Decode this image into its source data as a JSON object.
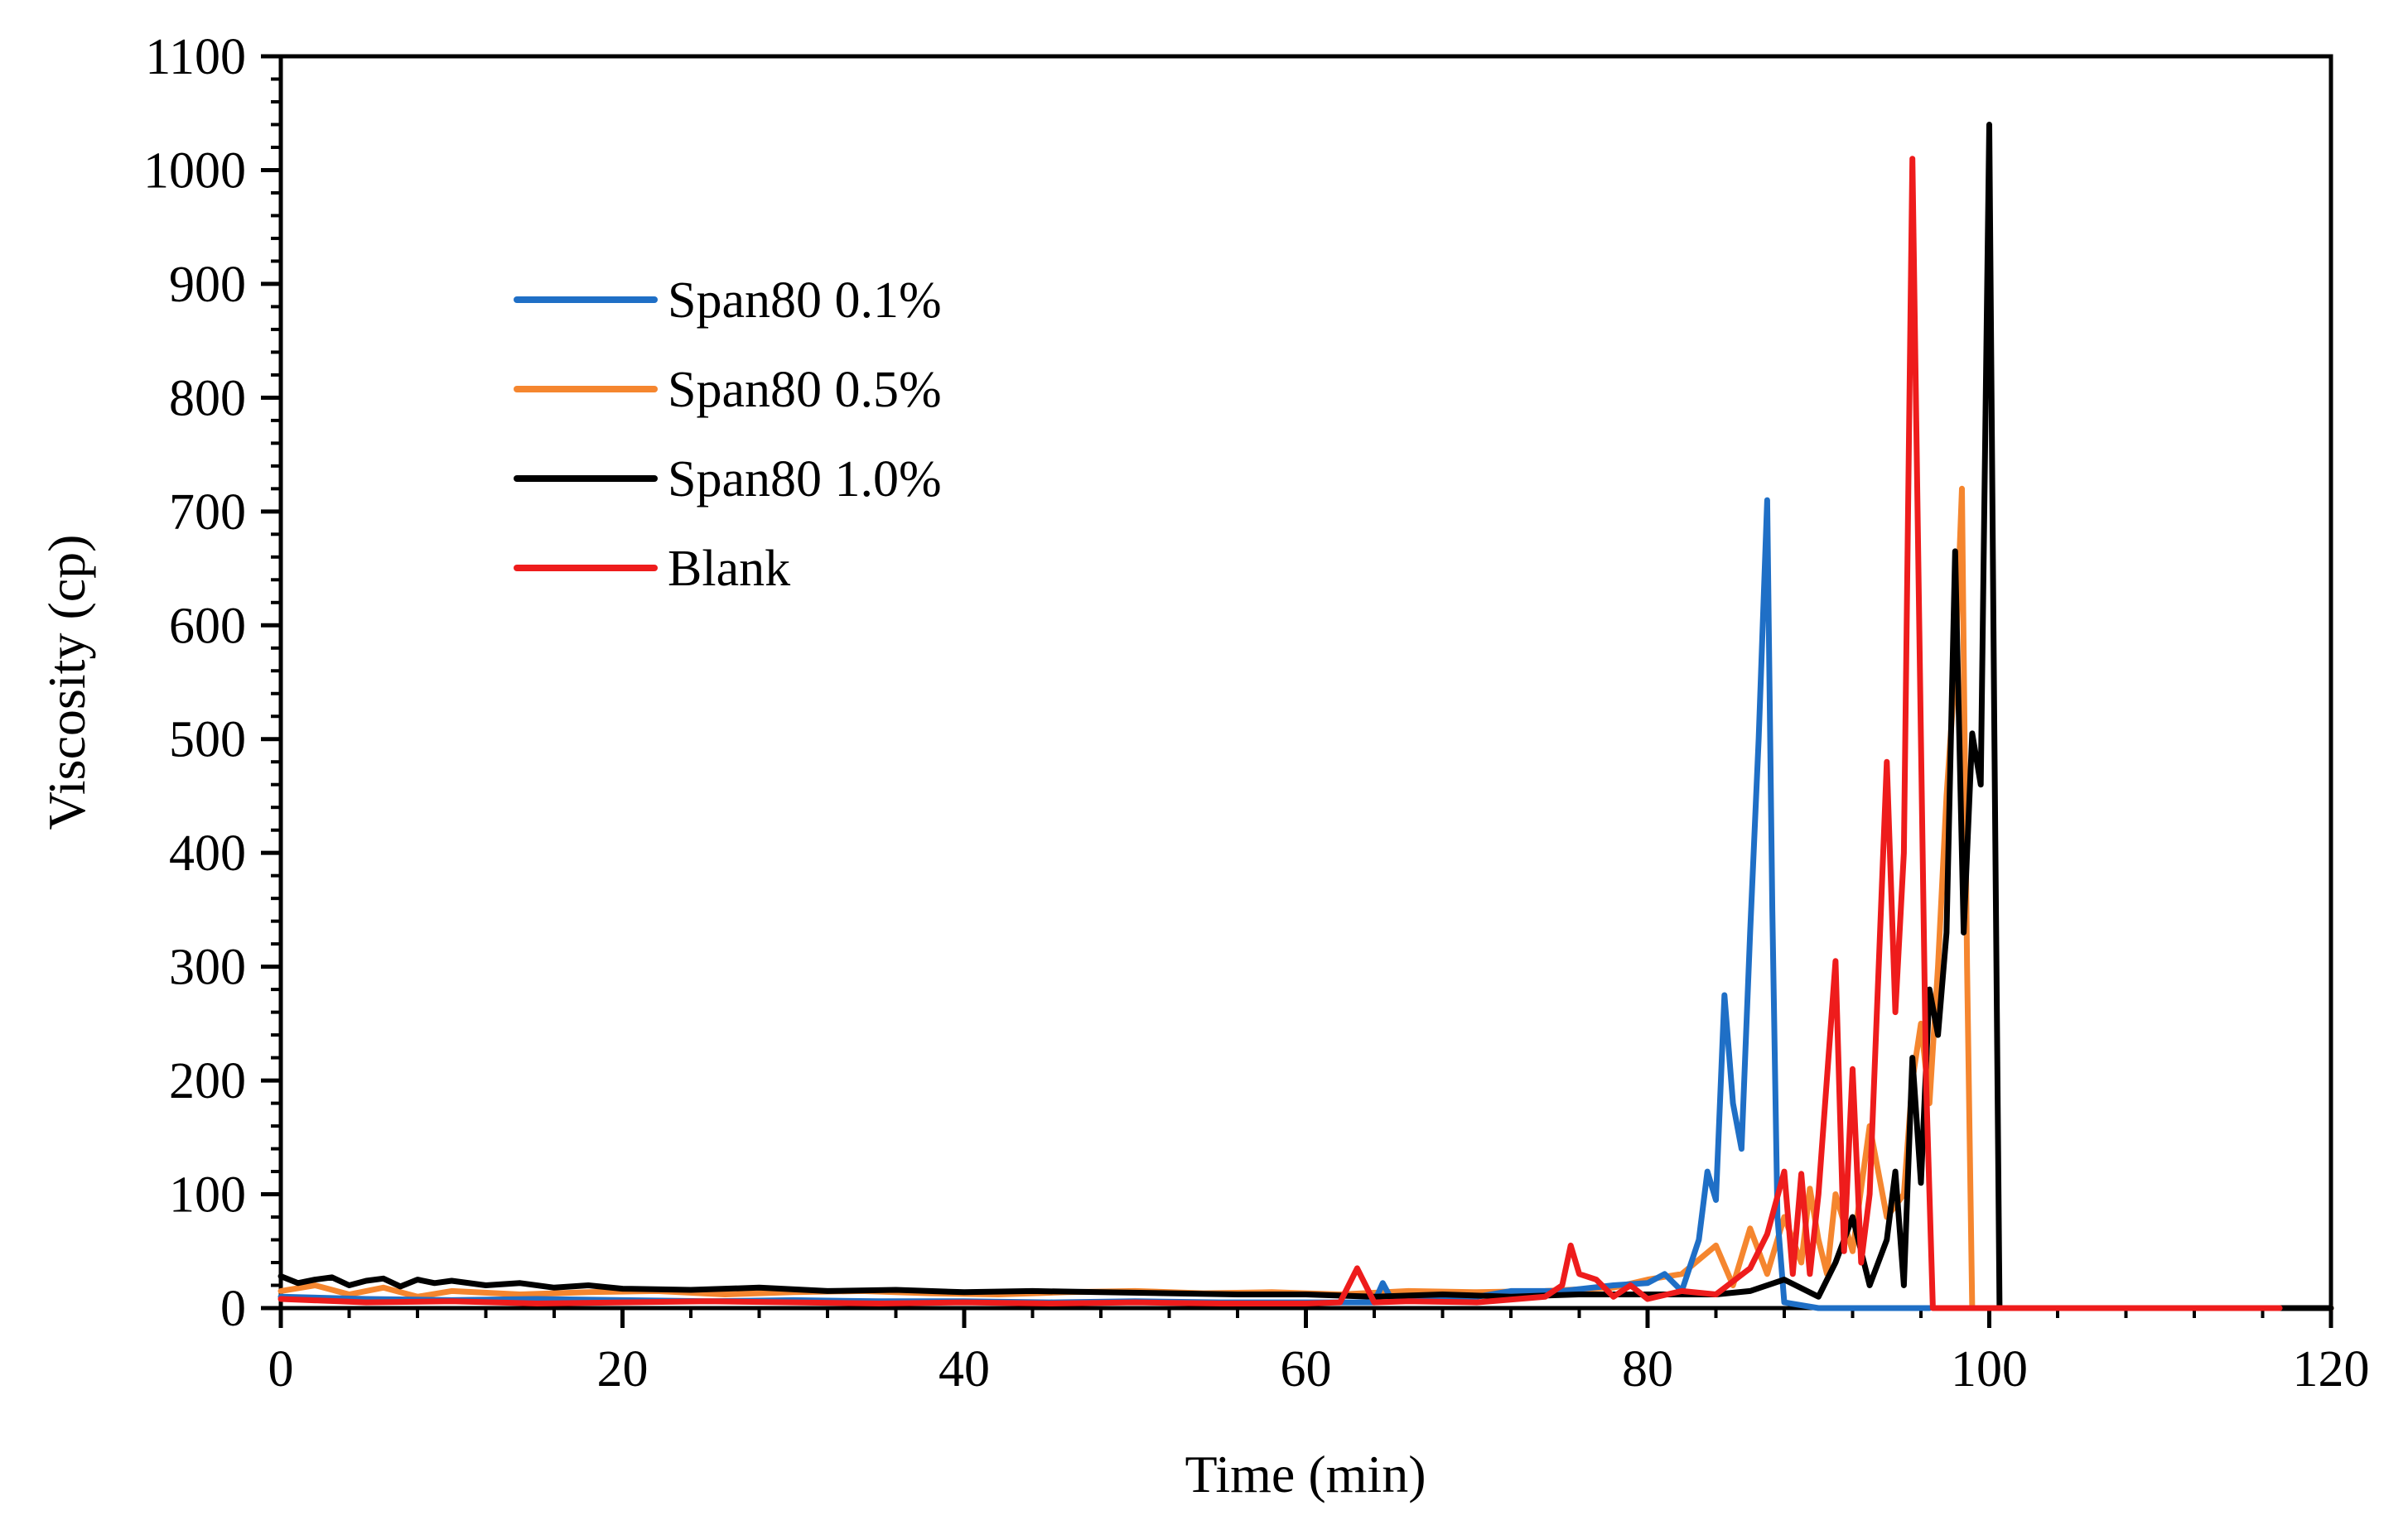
{
  "chart_data": {
    "type": "line",
    "title": "",
    "xlabel": "Time (min)",
    "ylabel": "Viscosity (cp)",
    "xlim": [
      0,
      120
    ],
    "ylim": [
      0,
      1100
    ],
    "xticks": [
      0,
      20,
      40,
      60,
      80,
      100,
      120
    ],
    "yticks": [
      0,
      100,
      200,
      300,
      400,
      500,
      600,
      700,
      800,
      900,
      1000,
      1100
    ],
    "grid": false,
    "legend_position": "upper-left",
    "series": [
      {
        "name": "Span80 0.1%",
        "color": "#1f6fc6",
        "x": [
          0,
          5,
          10,
          15,
          20,
          25,
          30,
          35,
          40,
          45,
          50,
          55,
          60,
          62,
          64,
          64.5,
          65,
          70,
          72,
          75,
          78,
          80,
          81,
          82,
          83,
          83.5,
          84,
          84.5,
          85,
          85.5,
          86,
          86.5,
          87,
          87.3,
          87.6,
          88,
          90,
          96.5
        ],
        "values": [
          10,
          8,
          7,
          8,
          7,
          6,
          7,
          6,
          6,
          5,
          6,
          5,
          5,
          5,
          5,
          22,
          8,
          10,
          15,
          15,
          20,
          22,
          30,
          15,
          60,
          120,
          95,
          275,
          180,
          140,
          330,
          500,
          710,
          350,
          80,
          5,
          0,
          0
        ]
      },
      {
        "name": "Span80 0.5%",
        "color": "#f5862f",
        "x": [
          0,
          2,
          4,
          6,
          8,
          10,
          14,
          18,
          22,
          26,
          30,
          34,
          38,
          42,
          46,
          50,
          54,
          58,
          62,
          66,
          70,
          74,
          78,
          80,
          82,
          84,
          85,
          86,
          87,
          88,
          89,
          89.5,
          90,
          90.5,
          91,
          92,
          93,
          94,
          95,
          95.5,
          96,
          96.5,
          97,
          97.5,
          98,
          98.4,
          98.7,
          99,
          120
        ],
        "values": [
          15,
          20,
          12,
          18,
          10,
          15,
          12,
          14,
          15,
          12,
          14,
          15,
          13,
          12,
          14,
          15,
          13,
          14,
          12,
          15,
          14,
          15,
          18,
          25,
          30,
          55,
          20,
          70,
          30,
          80,
          40,
          105,
          60,
          30,
          100,
          50,
          160,
          80,
          100,
          200,
          250,
          180,
          300,
          450,
          560,
          720,
          300,
          0,
          0
        ]
      },
      {
        "name": "Span80 1.0%",
        "color": "#000000",
        "x": [
          0,
          1,
          2,
          3,
          4,
          5,
          6,
          7,
          8,
          9,
          10,
          12,
          14,
          16,
          18,
          20,
          24,
          28,
          32,
          36,
          40,
          44,
          48,
          52,
          56,
          60,
          64,
          68,
          72,
          76,
          80,
          84,
          86,
          88,
          90,
          91,
          92,
          93,
          94,
          94.5,
          95,
          95.5,
          96,
          96.5,
          97,
          97.5,
          98,
          98.5,
          99,
          99.5,
          100,
          100.3,
          100.6,
          120
        ],
        "values": [
          28,
          22,
          25,
          27,
          20,
          24,
          26,
          19,
          25,
          22,
          24,
          20,
          22,
          18,
          20,
          17,
          16,
          18,
          15,
          16,
          14,
          15,
          14,
          13,
          12,
          12,
          10,
          12,
          10,
          12,
          12,
          12,
          15,
          25,
          10,
          40,
          80,
          20,
          60,
          120,
          20,
          220,
          110,
          280,
          240,
          330,
          665,
          330,
          505,
          460,
          1040,
          500,
          0,
          0
        ]
      },
      {
        "name": "Blank",
        "color": "#ee1c1c",
        "x": [
          0,
          5,
          10,
          15,
          20,
          25,
          30,
          35,
          40,
          45,
          50,
          55,
          60,
          62,
          63,
          64,
          66,
          70,
          74,
          75,
          75.5,
          76,
          77,
          78,
          79,
          80,
          82,
          84,
          86,
          87,
          88,
          88.5,
          89,
          89.5,
          90,
          91,
          91.5,
          92,
          92.5,
          93,
          94,
          94.5,
          95,
          95.5,
          96,
          96.3,
          96.7,
          117
        ],
        "values": [
          8,
          5,
          6,
          4,
          5,
          6,
          5,
          4,
          5,
          4,
          5,
          4,
          4,
          5,
          35,
          5,
          6,
          5,
          10,
          20,
          55,
          30,
          25,
          10,
          20,
          8,
          15,
          12,
          35,
          65,
          120,
          30,
          118,
          30,
          100,
          305,
          50,
          210,
          40,
          100,
          480,
          260,
          400,
          1010,
          500,
          200,
          0,
          0
        ]
      }
    ]
  }
}
